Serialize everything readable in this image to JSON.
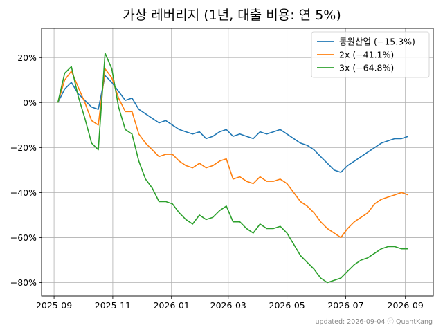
{
  "chart_data": {
    "type": "line",
    "title": "가상 레버리지 (1년, 대출 비용: 연 5%)",
    "footer": "updated: 2026-09-04 ⓒ QuantKang",
    "xlabel": "",
    "ylabel": "",
    "x_ticks": [
      "2025-09",
      "2025-11",
      "2026-01",
      "2026-03",
      "2026-05",
      "2026-07",
      "2026-09"
    ],
    "y_ticks": [
      "20%",
      "0%",
      "−20%",
      "−40%",
      "−60%",
      "−80%"
    ],
    "ylim": [
      -86,
      33
    ],
    "xlim": [
      "2025-08-19",
      "2026-09-30"
    ],
    "grid": true,
    "legend_position": "top-right",
    "x": [
      "2025-09-05",
      "2025-09-12",
      "2025-09-19",
      "2025-09-26",
      "2025-10-03",
      "2025-10-10",
      "2025-10-17",
      "2025-10-24",
      "2025-10-31",
      "2025-11-07",
      "2025-11-14",
      "2025-11-21",
      "2025-11-28",
      "2025-12-05",
      "2025-12-12",
      "2025-12-19",
      "2025-12-26",
      "2026-01-02",
      "2026-01-09",
      "2026-01-16",
      "2026-01-23",
      "2026-01-30",
      "2026-02-06",
      "2026-02-13",
      "2026-02-20",
      "2026-02-27",
      "2026-03-06",
      "2026-03-13",
      "2026-03-20",
      "2026-03-27",
      "2026-04-03",
      "2026-04-10",
      "2026-04-17",
      "2026-04-24",
      "2026-05-01",
      "2026-05-08",
      "2026-05-15",
      "2026-05-22",
      "2026-05-29",
      "2026-06-05",
      "2026-06-12",
      "2026-06-19",
      "2026-06-26",
      "2026-07-03",
      "2026-07-10",
      "2026-07-17",
      "2026-07-24",
      "2026-07-31",
      "2026-08-07",
      "2026-08-14",
      "2026-08-21",
      "2026-08-28",
      "2026-09-04"
    ],
    "series": [
      {
        "name": "동원산업 (−15.3%)",
        "color": "#1f77b4",
        "values": [
          0,
          6,
          9,
          4,
          1,
          -2,
          -3,
          12,
          9,
          5,
          1,
          2,
          -3,
          -5,
          -7,
          -9,
          -8,
          -10,
          -12,
          -13,
          -14,
          -13,
          -16,
          -15,
          -13,
          -12,
          -15,
          -14,
          -15,
          -16,
          -13,
          -14,
          -13,
          -12,
          -14,
          -16,
          -18,
          -19,
          -21,
          -24,
          -27,
          -30,
          -31,
          -28,
          -26,
          -24,
          -22,
          -20,
          -18,
          -17,
          -16,
          -16,
          -15
        ]
      },
      {
        "name": "2x (−41.1%)",
        "color": "#ff7f0e",
        "values": [
          0,
          10,
          14,
          7,
          0,
          -8,
          -10,
          15,
          11,
          2,
          -4,
          -4,
          -14,
          -18,
          -21,
          -24,
          -23,
          -23,
          -26,
          -28,
          -29,
          -27,
          -29,
          -28,
          -26,
          -25,
          -34,
          -33,
          -35,
          -36,
          -33,
          -35,
          -35,
          -34,
          -36,
          -40,
          -44,
          -46,
          -49,
          -53,
          -56,
          -58,
          -60,
          -56,
          -53,
          -51,
          -49,
          -45,
          -43,
          -42,
          -41,
          -40,
          -41
        ]
      },
      {
        "name": "3x (−64.8%)",
        "color": "#2ca02c",
        "values": [
          0,
          13,
          16,
          3,
          -7,
          -18,
          -21,
          22,
          15,
          -2,
          -12,
          -14,
          -26,
          -34,
          -38,
          -44,
          -44,
          -45,
          -49,
          -52,
          -54,
          -50,
          -52,
          -51,
          -48,
          -46,
          -53,
          -53,
          -56,
          -58,
          -54,
          -56,
          -56,
          -55,
          -58,
          -63,
          -68,
          -71,
          -74,
          -78,
          -80,
          -79,
          -78,
          -75,
          -72,
          -70,
          -69,
          -67,
          -65,
          -64,
          -64,
          -65,
          -65
        ]
      }
    ]
  }
}
